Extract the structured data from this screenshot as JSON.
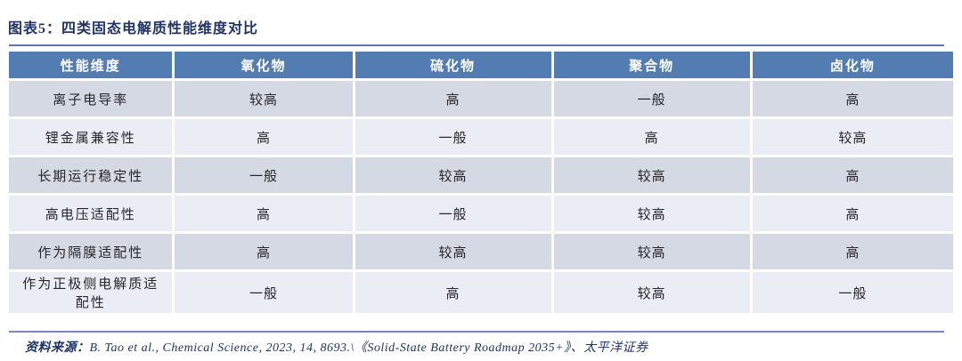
{
  "header": {
    "title": "图表5：四类固态电解质性能维度对比"
  },
  "chart_data": {
    "type": "table",
    "title": "四类固态电解质性能维度对比",
    "columns": [
      "性能维度",
      "氧化物",
      "硫化物",
      "聚合物",
      "卤化物"
    ],
    "rows": [
      [
        "离子电导率",
        "较高",
        "高",
        "一般",
        "高"
      ],
      [
        "锂金属兼容性",
        "高",
        "一般",
        "高",
        "较高"
      ],
      [
        "长期运行稳定性",
        "一般",
        "较高",
        "较高",
        "高"
      ],
      [
        "高电压适配性",
        "高",
        "一般",
        "较高",
        "高"
      ],
      [
        "作为隔膜适配性",
        "高",
        "较高",
        "较高",
        "高"
      ],
      [
        "作为正极侧电解质适配性",
        "一般",
        "高",
        "较高",
        "一般"
      ]
    ]
  },
  "footer": {
    "source_label": "资料来源：",
    "source_text": "B. Tao et al., Chemical Science, 2023, 14, 8693.\\《Solid-State Battery Roadmap 2035+》、太平洋证券"
  },
  "colors": {
    "header_bg": "#527CB2",
    "row_odd": "#D4D9E3",
    "row_even": "#EAEDF3",
    "accent_text": "#1F3468",
    "rule_top": "#5B74B5",
    "rule_bottom": "#7987BE"
  }
}
